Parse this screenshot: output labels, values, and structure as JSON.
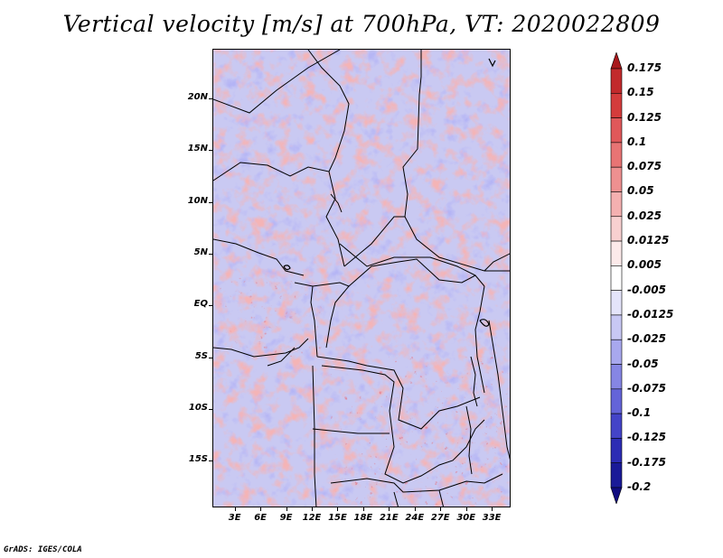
{
  "title": "Vertical velocity [m/s] at 700hPa, VT: 2020022809",
  "credit": "GrADS: IGES/COLA",
  "map": {
    "variable": "Vertical velocity",
    "units": "m/s",
    "level": "700hPa",
    "valid_time": "2020022809",
    "lat_labels": [
      "20N",
      "15N",
      "10N",
      "5N",
      "EQ",
      "5S",
      "10S",
      "15S"
    ],
    "lat_values": [
      20,
      15,
      10,
      5,
      0,
      -5,
      -10,
      -15
    ],
    "lon_labels": [
      "3E",
      "6E",
      "9E",
      "12E",
      "15E",
      "18E",
      "21E",
      "24E",
      "27E",
      "30E",
      "33E"
    ],
    "lon_values": [
      3,
      6,
      9,
      12,
      15,
      18,
      21,
      24,
      27,
      30,
      33
    ],
    "lat_range": [
      -19.5,
      24.8
    ],
    "lon_range": [
      0.4,
      35.2
    ]
  },
  "colorbar": {
    "levels": [
      "0.175",
      "0.15",
      "0.125",
      "0.1",
      "0.075",
      "0.05",
      "0.025",
      "0.0125",
      "0.005",
      "-0.005",
      "-0.0125",
      "-0.025",
      "-0.05",
      "-0.075",
      "-0.1",
      "-0.125",
      "-0.175",
      "-0.2"
    ],
    "colors": [
      "#a8181c",
      "#c22a2c",
      "#d43c3c",
      "#e0585a",
      "#e87474",
      "#ee9090",
      "#f4b0b0",
      "#f8d0d0",
      "#fceaea",
      "#ffffff",
      "#e4e4fa",
      "#c8c8f4",
      "#a8a8ee",
      "#8686e4",
      "#6464d8",
      "#4444c8",
      "#2c2cb4",
      "#1a1a98",
      "#100c80"
    ]
  }
}
